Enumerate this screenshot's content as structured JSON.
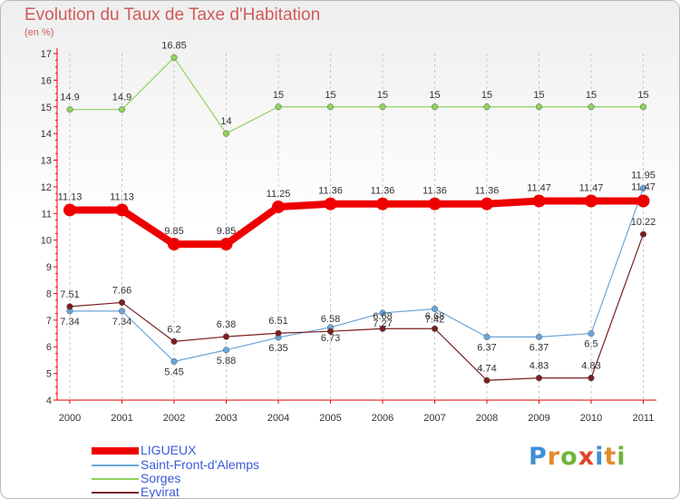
{
  "chart_data": {
    "type": "line",
    "title": "Evolution du Taux de Taxe d'Habitation",
    "subtitle": "(en %)",
    "x": [
      "2000",
      "2001",
      "2002",
      "2003",
      "2004",
      "2005",
      "2006",
      "2007",
      "2008",
      "2009",
      "2010",
      "2011"
    ],
    "ylim": [
      4,
      17
    ],
    "yticks": [
      "4",
      "5",
      "6",
      "7",
      "8",
      "9",
      "10",
      "11",
      "12",
      "13",
      "14",
      "15",
      "16",
      "17"
    ],
    "grid": "vertical dashed",
    "legend": "bottom-left",
    "series": [
      {
        "name": "LIGUEUX",
        "color": "#ee0000",
        "values": [
          11.13,
          11.13,
          9.85,
          9.85,
          11.25,
          11.36,
          11.36,
          11.36,
          11.36,
          11.47,
          11.47,
          11.47
        ],
        "labels": [
          "11.13",
          "11.13",
          "9.85",
          "9.85",
          "11.25",
          "11.36",
          "11.36",
          "11.36",
          "11.36",
          "11.47",
          "11.47",
          "11.47"
        ]
      },
      {
        "name": "Saint-Front-d'Alemps",
        "color": "#6aa6da",
        "values": [
          7.34,
          7.34,
          5.45,
          5.88,
          6.35,
          6.73,
          7.27,
          7.42,
          6.37,
          6.37,
          6.5,
          11.95
        ],
        "labels": [
          "7.34",
          "7.34",
          "5.45",
          "5.88",
          "6.35",
          "6.73",
          "7.27",
          "7.42",
          "6.37",
          "6.37",
          "6.5",
          "11.95"
        ]
      },
      {
        "name": "Sorges",
        "color": "#8fd25f",
        "values": [
          14.9,
          14.9,
          16.85,
          14,
          15,
          15,
          15,
          15,
          15,
          15,
          15,
          15
        ],
        "labels": [
          "14.9",
          "14.9",
          "16.85",
          "14",
          "15",
          "15",
          "15",
          "15",
          "15",
          "15",
          "15",
          "15"
        ]
      },
      {
        "name": "Eyvirat",
        "color": "#7a1f1f",
        "values": [
          7.51,
          7.66,
          6.2,
          6.38,
          6.51,
          6.58,
          6.68,
          6.68,
          4.74,
          4.83,
          4.83,
          10.22
        ],
        "labels": [
          "7.51",
          "7.66",
          "6.2",
          "6.38",
          "6.51",
          "6.58",
          "6.68",
          "6.68",
          "4.74",
          "4.83",
          "4.83",
          "10.22"
        ]
      }
    ]
  },
  "legend": {
    "items": [
      {
        "label": "LIGUEUX",
        "color": "#ee0000"
      },
      {
        "label": "Saint-Front-d'Alemps",
        "color": "#6aa6da"
      },
      {
        "label": "Sorges",
        "color": "#8fd25f"
      },
      {
        "label": "Eyvirat",
        "color": "#7a1f1f"
      }
    ]
  },
  "logo": {
    "text": "Proxiti"
  }
}
